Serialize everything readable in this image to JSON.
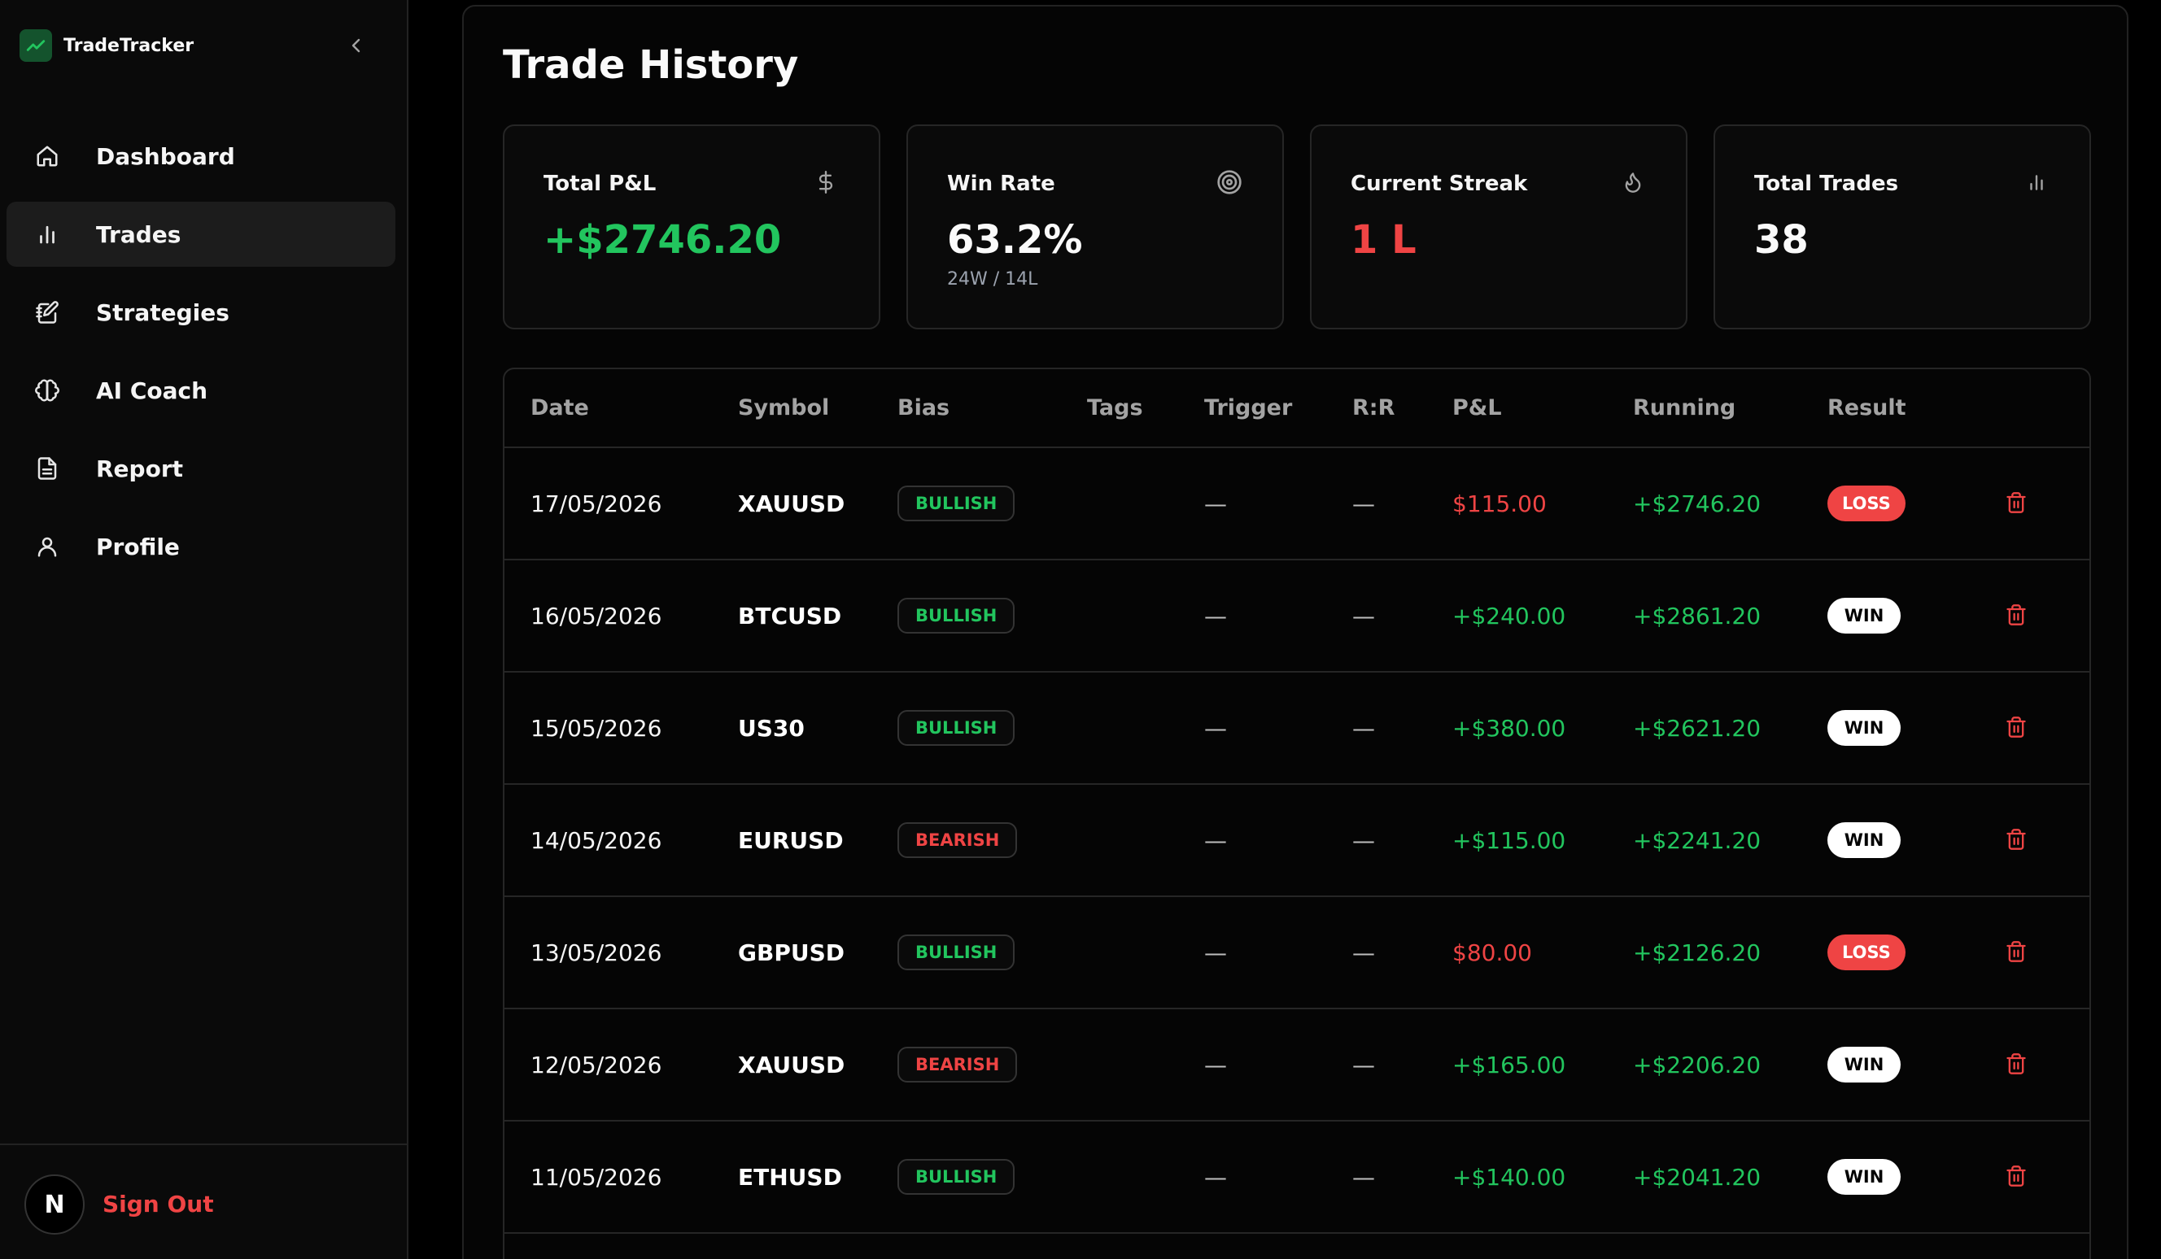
{
  "app": {
    "name": "TradeTracker"
  },
  "sidebar": {
    "items": [
      {
        "label": "Dashboard",
        "icon": "home-icon"
      },
      {
        "label": "Trades",
        "icon": "bar-chart-icon",
        "active": true
      },
      {
        "label": "Strategies",
        "icon": "notebook-pen-icon"
      },
      {
        "label": "AI Coach",
        "icon": "brain-icon"
      },
      {
        "label": "Report",
        "icon": "file-text-icon"
      },
      {
        "label": "Profile",
        "icon": "user-icon"
      }
    ],
    "footer": {
      "avatar_letter": "N",
      "sign_out": "Sign Out"
    }
  },
  "main": {
    "title": "Trade History",
    "stats": [
      {
        "label": "Total P&L",
        "value": "+$2746.20",
        "icon": "dollar-icon",
        "color": "#22c55e"
      },
      {
        "label": "Win Rate",
        "value": "63.2%",
        "sub": "24W / 14L",
        "icon": "target-icon",
        "color": "#fafafa"
      },
      {
        "label": "Current Streak",
        "value": "1 L",
        "icon": "flame-icon",
        "color": "#ef4444"
      },
      {
        "label": "Total Trades",
        "value": "38",
        "icon": "bar-chart-icon",
        "color": "#fafafa"
      }
    ],
    "table": {
      "columns": [
        "Date",
        "Symbol",
        "Bias",
        "Tags",
        "Trigger",
        "R:R",
        "P&L",
        "Running",
        "Result"
      ],
      "rows": [
        {
          "date": "17/05/2026",
          "symbol": "XAUUSD",
          "bias": "BULLISH",
          "tags": "",
          "trigger": "—",
          "rr": "—",
          "pnl": "$115.00",
          "running": "+$2746.20",
          "result": "LOSS"
        },
        {
          "date": "16/05/2026",
          "symbol": "BTCUSD",
          "bias": "BULLISH",
          "tags": "",
          "trigger": "—",
          "rr": "—",
          "pnl": "+$240.00",
          "running": "+$2861.20",
          "result": "WIN"
        },
        {
          "date": "15/05/2026",
          "symbol": "US30",
          "bias": "BULLISH",
          "tags": "",
          "trigger": "—",
          "rr": "—",
          "pnl": "+$380.00",
          "running": "+$2621.20",
          "result": "WIN"
        },
        {
          "date": "14/05/2026",
          "symbol": "EURUSD",
          "bias": "BEARISH",
          "tags": "",
          "trigger": "—",
          "rr": "—",
          "pnl": "+$115.00",
          "running": "+$2241.20",
          "result": "WIN"
        },
        {
          "date": "13/05/2026",
          "symbol": "GBPUSD",
          "bias": "BULLISH",
          "tags": "",
          "trigger": "—",
          "rr": "—",
          "pnl": "$80.00",
          "running": "+$2126.20",
          "result": "LOSS"
        },
        {
          "date": "12/05/2026",
          "symbol": "XAUUSD",
          "bias": "BEARISH",
          "tags": "",
          "trigger": "—",
          "rr": "—",
          "pnl": "+$165.00",
          "running": "+$2206.20",
          "result": "WIN"
        },
        {
          "date": "11/05/2026",
          "symbol": "ETHUSD",
          "bias": "BULLISH",
          "tags": "",
          "trigger": "—",
          "rr": "—",
          "pnl": "+$140.00",
          "running": "+$2041.20",
          "result": "WIN"
        }
      ]
    }
  },
  "colors": {
    "win": "#22c55e",
    "loss": "#ef4444",
    "accent_bg": "#14532d"
  }
}
